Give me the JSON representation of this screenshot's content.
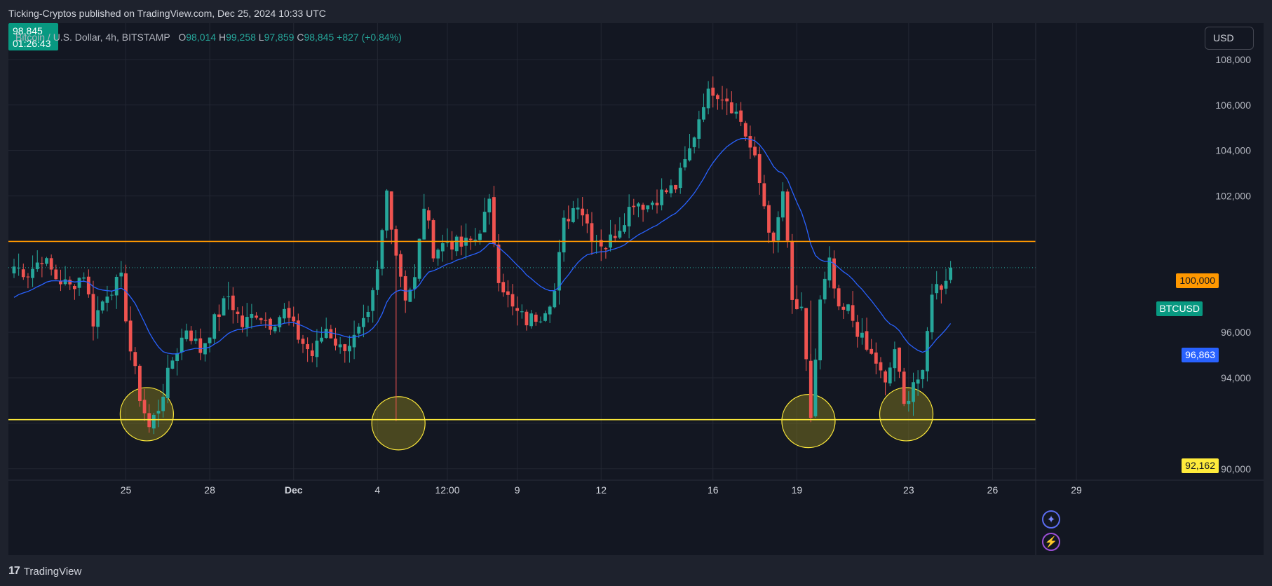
{
  "header": {
    "published": "Ticking-Cryptos published on TradingView.com, Dec 25, 2024 10:33 UTC"
  },
  "legend": {
    "symbol": "Bitcoin / U.S. Dollar, 4h, BITSTAMP",
    "open_label": "O",
    "open": "98,014",
    "high_label": "H",
    "high": "99,258",
    "low_label": "L",
    "low": "97,859",
    "close_label": "C",
    "close": "98,845",
    "change": "+827 (+0.84%)"
  },
  "toolbar": {
    "currency": "USD"
  },
  "price_tags": {
    "level_100k": "100,000",
    "ema_value": "96,863",
    "level_92k": "92,162",
    "ticker": "BTCUSD",
    "last_price": "98,845",
    "countdown": "01:26:43"
  },
  "footer": {
    "brand": "TradingView",
    "logo_glyph": "17"
  },
  "icons": {
    "sparkle": "sparkle-icon",
    "bolt": "lightning-icon"
  },
  "colors": {
    "up": "#26a69a",
    "down": "#ef5350",
    "ema": "#2962ff",
    "resistance": "#ff9800",
    "support": "#ffeb3b"
  },
  "chart_data": {
    "type": "candlestick",
    "symbol": "BTCUSD",
    "timeframe": "4h",
    "ylim": [
      89500,
      109600
    ],
    "y_ticks": [
      90000,
      92000,
      94000,
      96000,
      98000,
      100000,
      102000,
      104000,
      106000,
      108000
    ],
    "y_tick_labels": [
      "90,000",
      "",
      "94,000",
      "96,000",
      "",
      "",
      "102,000",
      "104,000",
      "106,000",
      "108,000"
    ],
    "x_tick_labels": [
      "25",
      "28",
      "Dec",
      "4",
      "12:00",
      "9",
      "12",
      "16",
      "19",
      "23",
      "26",
      "29"
    ],
    "x_tick_bars": [
      24,
      42,
      60,
      78,
      93,
      108,
      126,
      150,
      168,
      192,
      210,
      228
    ],
    "horizontal_lines": [
      {
        "price": 100000,
        "color": "#ff9800",
        "label": "100,000"
      },
      {
        "price": 92162,
        "color": "#ffeb3b",
        "label": "92,162"
      }
    ],
    "last_price": 98845,
    "highlight_circles": [
      {
        "bar": 28.5,
        "price": 92400
      },
      {
        "bar": 82.5,
        "price": 92000
      },
      {
        "bar": 170.5,
        "price": 92100
      },
      {
        "bar": 191.5,
        "price": 92400
      }
    ],
    "anchors": [
      [
        0,
        98900
      ],
      [
        3,
        98600
      ],
      [
        6,
        99300
      ],
      [
        9,
        98400
      ],
      [
        12,
        98000
      ],
      [
        15,
        98600
      ],
      [
        17,
        96500
      ],
      [
        20,
        97800
      ],
      [
        23,
        98300
      ],
      [
        25,
        95200
      ],
      [
        27,
        93200
      ],
      [
        29,
        91800
      ],
      [
        31,
        92700
      ],
      [
        34,
        94800
      ],
      [
        37,
        96200
      ],
      [
        40,
        95200
      ],
      [
        43,
        96500
      ],
      [
        46,
        97600
      ],
      [
        49,
        96300
      ],
      [
        52,
        96900
      ],
      [
        55,
        96400
      ],
      [
        58,
        96900
      ],
      [
        61,
        95800
      ],
      [
        64,
        95000
      ],
      [
        67,
        96200
      ],
      [
        70,
        95300
      ],
      [
        73,
        95700
      ],
      [
        76,
        96600
      ],
      [
        78,
        98600
      ],
      [
        80,
        102200
      ],
      [
        82,
        99500
      ],
      [
        84,
        97600
      ],
      [
        86,
        98300
      ],
      [
        88,
        101600
      ],
      [
        90,
        99600
      ],
      [
        93,
        100000
      ],
      [
        96,
        99800
      ],
      [
        99,
        100100
      ],
      [
        102,
        101600
      ],
      [
        104,
        98500
      ],
      [
        107,
        97000
      ],
      [
        110,
        96500
      ],
      [
        113,
        96800
      ],
      [
        116,
        97800
      ],
      [
        118,
        100800
      ],
      [
        121,
        101800
      ],
      [
        124,
        100300
      ],
      [
        127,
        99800
      ],
      [
        130,
        100700
      ],
      [
        133,
        101800
      ],
      [
        136,
        101600
      ],
      [
        139,
        102100
      ],
      [
        142,
        102400
      ],
      [
        145,
        104000
      ],
      [
        148,
        106200
      ],
      [
        150,
        106700
      ],
      [
        153,
        106300
      ],
      [
        156,
        105300
      ],
      [
        159,
        103500
      ],
      [
        161,
        101600
      ],
      [
        163,
        99700
      ],
      [
        165,
        102200
      ],
      [
        167,
        97300
      ],
      [
        169,
        96800
      ],
      [
        171,
        92300
      ],
      [
        173,
        97300
      ],
      [
        175,
        99000
      ],
      [
        177,
        96800
      ],
      [
        179,
        97000
      ],
      [
        181,
        96100
      ],
      [
        183,
        95200
      ],
      [
        185,
        94700
      ],
      [
        187,
        93600
      ],
      [
        189,
        95300
      ],
      [
        191,
        92700
      ],
      [
        193,
        93900
      ],
      [
        195,
        94000
      ],
      [
        197,
        97900
      ],
      [
        199,
        98100
      ],
      [
        201,
        98845
      ]
    ],
    "ema": {
      "period": 20,
      "value_label": "96,863"
    }
  }
}
